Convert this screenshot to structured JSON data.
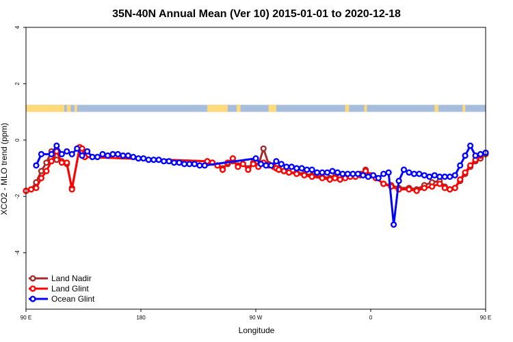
{
  "chart_data": {
    "type": "line",
    "title": "35N-40N Annual Mean (Ver 10)   2015-01-01 to 2020-12-18",
    "xlabel": "Longitude",
    "ylabel": "XCO2 - MLO trend (ppm)",
    "xlim": [
      90,
      450
    ],
    "ylim": [
      -6,
      4
    ],
    "x_ticks": [
      {
        "value": 90,
        "label": "90 E"
      },
      {
        "value": 180,
        "label": "180"
      },
      {
        "value": 270,
        "label": "90 W"
      },
      {
        "value": 360,
        "label": "0"
      },
      {
        "value": 450,
        "label": "90 E"
      },
      {
        "value": 540,
        "label": "180"
      }
    ],
    "y_ticks": [
      {
        "value": 4,
        "label": "4"
      },
      {
        "value": 2,
        "label": "2"
      },
      {
        "value": 0,
        "label": "0"
      },
      {
        "value": -2,
        "label": "-2"
      },
      {
        "value": -4,
        "label": "-4"
      }
    ],
    "grid": false,
    "legend_position": "bottom-left",
    "surface_strip": {
      "y_range": [
        1.0,
        1.25
      ],
      "ocean_color": "#a6bddb",
      "land_color": "#ffd97a",
      "land_segments": [
        [
          90,
          120
        ],
        [
          122,
          125
        ],
        [
          128,
          130
        ],
        [
          232,
          248
        ],
        [
          255,
          258
        ],
        [
          280,
          286
        ],
        [
          340,
          343
        ],
        [
          355,
          357
        ],
        [
          410,
          413
        ],
        [
          432,
          434
        ],
        [
          452,
          480
        ],
        [
          488,
          491
        ],
        [
          582,
          590
        ]
      ]
    },
    "series": [
      {
        "name": "Land Nadir",
        "color": "#a52a2a",
        "x": [
          90,
          94,
          98,
          102,
          106,
          110,
          114,
          118,
          122,
          126,
          132,
          134,
          136,
          232,
          236,
          240,
          244,
          248,
          252,
          256,
          260,
          264,
          268,
          272,
          276,
          280,
          284,
          286,
          288,
          292,
          296,
          302,
          308,
          314,
          322,
          328,
          332,
          336,
          340,
          344,
          348,
          352,
          356,
          360,
          364,
          370,
          376,
          382,
          390,
          396,
          402,
          408,
          414,
          418,
          422,
          426,
          430,
          434,
          438,
          442,
          446,
          450,
          454,
          458,
          462,
          466,
          470,
          474,
          478,
          482,
          486,
          488,
          490,
          494
        ],
        "y": [
          -1.8,
          -1.75,
          -1.5,
          -1.1,
          -0.8,
          -0.4,
          -0.7,
          -0.75,
          -0.85,
          -1.7,
          -0.3,
          -0.4,
          -0.6,
          -0.75,
          -0.8,
          -0.9,
          -1.0,
          -0.85,
          -0.75,
          -0.9,
          -0.85,
          -1.0,
          -0.8,
          -0.9,
          -0.3,
          -0.85,
          -0.95,
          -1.0,
          -1.0,
          -1.1,
          -1.15,
          -1.15,
          -1.2,
          -1.25,
          -1.3,
          -1.35,
          -1.3,
          -1.3,
          -1.3,
          -1.25,
          -1.25,
          -1.2,
          -1.05,
          -1.25,
          -1.35,
          -1.55,
          -1.6,
          -1.7,
          -1.7,
          -1.75,
          -1.6,
          -1.5,
          -1.45,
          -1.65,
          -1.75,
          -1.7,
          -1.45,
          -1.2,
          -0.95,
          -0.75,
          -0.65,
          -0.5,
          -0.4,
          -0.3,
          -0.25,
          -0.4,
          -0.45,
          -0.5,
          -0.3,
          -0.25,
          -0.3,
          -0.65,
          -1.0,
          -1.1
        ]
      },
      {
        "name": "Land Glint",
        "color": "#ff0000",
        "x": [
          90,
          94,
          98,
          102,
          106,
          110,
          114,
          118,
          122,
          126,
          132,
          134,
          136,
          232,
          236,
          240,
          244,
          248,
          252,
          256,
          260,
          264,
          268,
          272,
          276,
          280,
          284,
          286,
          288,
          292,
          296,
          302,
          308,
          314,
          322,
          328,
          332,
          336,
          340,
          344,
          348,
          352,
          356,
          360,
          364,
          370,
          376,
          382,
          390,
          396,
          402,
          408,
          414,
          418,
          422,
          426,
          430,
          434,
          438,
          442,
          446,
          450,
          454,
          458,
          462,
          466,
          470,
          474,
          478,
          482,
          486,
          488,
          490,
          494
        ],
        "y": [
          -1.8,
          -1.75,
          -1.7,
          -1.35,
          -1.1,
          -0.75,
          -0.4,
          -0.8,
          -0.8,
          -1.75,
          -0.25,
          -0.3,
          -0.6,
          -0.75,
          -0.8,
          -0.9,
          -1.05,
          -0.8,
          -0.65,
          -0.95,
          -0.85,
          -1.05,
          -0.85,
          -0.95,
          -0.8,
          -0.9,
          -0.95,
          -1.0,
          -1.05,
          -1.1,
          -1.15,
          -1.2,
          -1.25,
          -1.3,
          -1.35,
          -1.4,
          -1.35,
          -1.4,
          -1.35,
          -1.3,
          -1.3,
          -1.25,
          -1.1,
          -1.25,
          -1.35,
          -1.55,
          -1.65,
          -1.75,
          -1.75,
          -1.8,
          -1.7,
          -1.65,
          -1.55,
          -1.7,
          -1.75,
          -1.7,
          -1.4,
          -1.15,
          -0.9,
          -0.7,
          -0.55,
          -0.45,
          -0.35,
          -0.3,
          -0.25,
          -0.35,
          -0.45,
          -0.55,
          -0.35,
          -0.25,
          -0.3,
          -0.7,
          -1.0,
          -1.1
        ]
      },
      {
        "name": "Ocean Glint",
        "color": "#0000ff",
        "x": [
          98,
          102,
          110,
          114,
          118,
          122,
          126,
          130,
          134,
          138,
          142,
          146,
          150,
          154,
          158,
          162,
          166,
          170,
          174,
          178,
          182,
          186,
          190,
          194,
          198,
          202,
          206,
          210,
          214,
          218,
          222,
          226,
          230,
          270,
          274,
          278,
          282,
          286,
          290,
          294,
          298,
          302,
          306,
          310,
          314,
          318,
          322,
          326,
          330,
          334,
          338,
          342,
          346,
          350,
          354,
          358,
          362,
          366,
          370,
          374,
          378,
          382,
          386,
          390,
          394,
          398,
          402,
          406,
          410,
          414,
          418,
          422,
          426,
          430,
          434,
          438,
          442,
          446,
          450,
          454,
          458,
          462,
          466,
          470,
          474,
          478,
          482,
          486,
          490,
          494
        ],
        "y": [
          -0.9,
          -0.5,
          -0.5,
          -0.2,
          -0.5,
          -0.4,
          -0.5,
          -0.3,
          -0.55,
          -0.4,
          -0.6,
          -0.6,
          -0.5,
          -0.55,
          -0.5,
          -0.5,
          -0.55,
          -0.55,
          -0.6,
          -0.65,
          -0.65,
          -0.7,
          -0.7,
          -0.7,
          -0.75,
          -0.75,
          -0.8,
          -0.8,
          -0.85,
          -0.85,
          -0.85,
          -0.9,
          -0.9,
          -0.65,
          -0.85,
          -0.9,
          -0.9,
          -0.75,
          -0.85,
          -0.95,
          -0.95,
          -1.0,
          -1.0,
          -1.05,
          -1.05,
          -1.15,
          -1.15,
          -1.15,
          -1.1,
          -1.15,
          -1.2,
          -1.2,
          -1.2,
          -1.2,
          -1.25,
          -1.3,
          -1.25,
          -1.35,
          -1.2,
          -1.15,
          -3.0,
          -1.45,
          -1.05,
          -1.15,
          -1.2,
          -1.2,
          -1.25,
          -1.3,
          -1.25,
          -1.3,
          -1.3,
          -1.3,
          -1.25,
          -0.9,
          -0.55,
          -0.2,
          -0.55,
          -0.5,
          -0.45,
          -0.6,
          -0.55,
          -0.55,
          -0.6,
          -0.6,
          -0.6,
          -0.55,
          -0.6,
          -0.6,
          -0.55,
          -0.6
        ]
      }
    ]
  }
}
